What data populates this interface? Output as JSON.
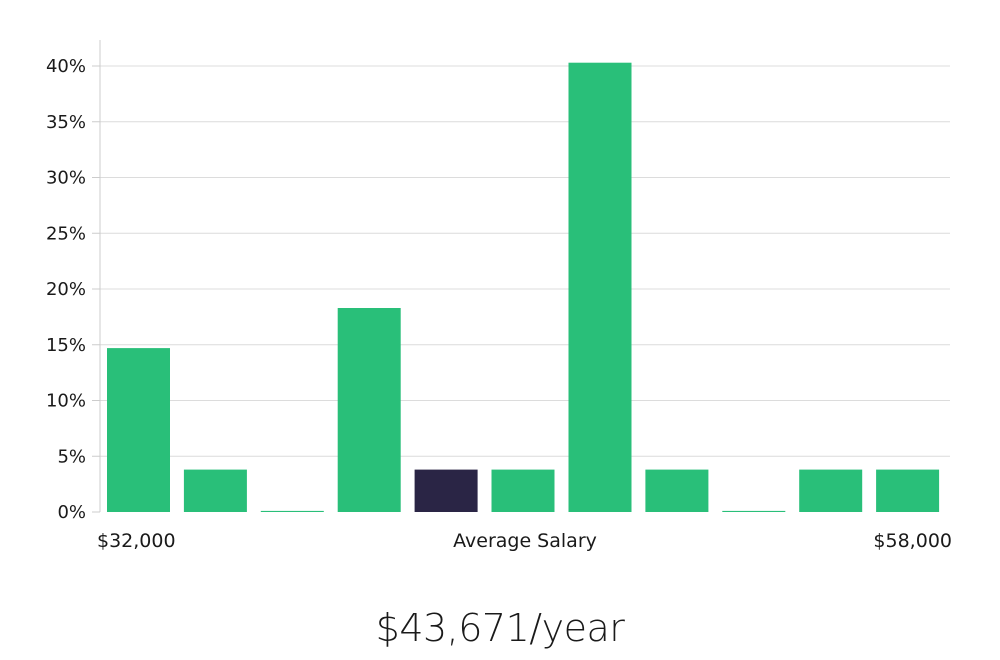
{
  "chart_data": {
    "type": "bar",
    "title": "",
    "xlabel": "Average Salary",
    "ylabel": "",
    "x_min_label": "$32,000",
    "x_max_label": "$58,000",
    "ylim": [
      0,
      42
    ],
    "y_ticks": [
      0,
      5,
      10,
      15,
      20,
      25,
      30,
      35,
      40
    ],
    "y_tick_labels": [
      "0%",
      "5%",
      "10%",
      "15%",
      "20%",
      "25%",
      "30%",
      "35%",
      "40%"
    ],
    "values": [
      14.7,
      3.8,
      0.1,
      18.3,
      3.8,
      3.8,
      40.3,
      3.8,
      0.1,
      3.8,
      3.8
    ],
    "highlight_index": 4,
    "colors": {
      "bar": "#29bf79",
      "highlight": "#2a2545",
      "grid": "#dcdcdc",
      "axis": "#cccccc"
    }
  },
  "summary": {
    "salary": "$43,671/year"
  }
}
